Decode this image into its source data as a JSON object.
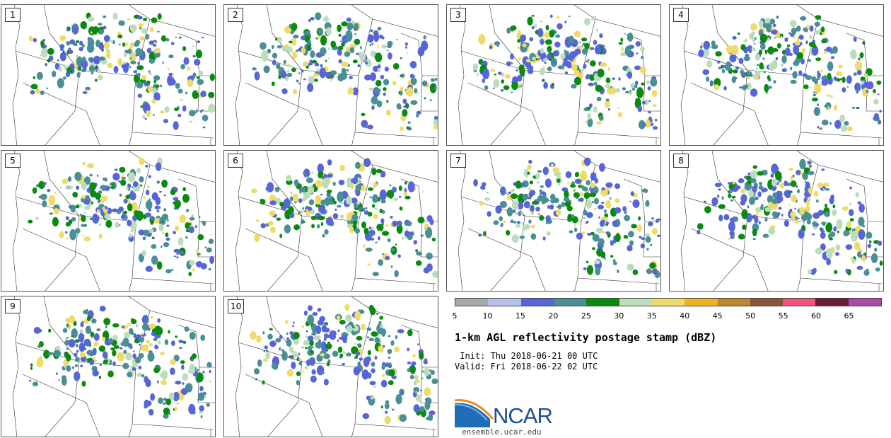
{
  "panels": [
    {
      "label": "1"
    },
    {
      "label": "2"
    },
    {
      "label": "3"
    },
    {
      "label": "4"
    },
    {
      "label": "5"
    },
    {
      "label": "6"
    },
    {
      "label": "7"
    },
    {
      "label": "8"
    },
    {
      "label": "9"
    },
    {
      "label": "10"
    }
  ],
  "colorbar": {
    "ticks": [
      "5",
      "10",
      "15",
      "20",
      "25",
      "30",
      "35",
      "40",
      "45",
      "50",
      "55",
      "60",
      "65"
    ],
    "colors": [
      "#a9a9a9",
      "#b7c0ea",
      "#5765d8",
      "#4a8f95",
      "#0a8a0e",
      "#bcdcbc",
      "#eedc6a",
      "#f0b122",
      "#c0862e",
      "#8b5538",
      "#f0527a",
      "#6b1a3a",
      "#a84aa8"
    ]
  },
  "title": "1-km AGL reflectivity postage stamp (dBZ)",
  "init": " Init: Thu 2018-06-21 00 UTC",
  "valid": "Valid: Fri 2018-06-22 02 UTC",
  "logo": {
    "text": "NCAR",
    "website": "ensemble.ucar.edu"
  }
}
